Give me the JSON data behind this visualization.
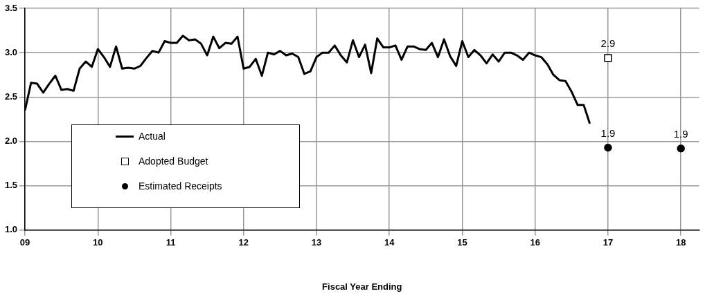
{
  "chart_data": {
    "type": "line",
    "xlabel": "Fiscal Year Ending",
    "xlim": [
      9,
      18.25
    ],
    "xticks": [
      {
        "value": 9,
        "label": "09"
      },
      10,
      11,
      12,
      13,
      14,
      15,
      16,
      17,
      18
    ],
    "ylim": [
      1,
      3.5
    ],
    "yticks": [
      {
        "value": 1,
        "label": "1.0"
      },
      1.5,
      {
        "value": 2,
        "label": "2.0"
      },
      2.5,
      {
        "value": 3,
        "label": "3.0"
      },
      3.5
    ],
    "grid": true,
    "legend": "left",
    "series": [
      {
        "name": "Actual",
        "color": "#000000",
        "marker": "none",
        "x": [
          9,
          9.0833,
          9.1667,
          9.25,
          9.3333,
          9.4167,
          9.5,
          9.5833,
          9.6667,
          9.75,
          9.8333,
          9.9167,
          10,
          10.0833,
          10.1667,
          10.25,
          10.3333,
          10.4167,
          10.5,
          10.5833,
          10.6667,
          10.75,
          10.8333,
          10.9167,
          11,
          11.0833,
          11.1667,
          11.25,
          11.3333,
          11.4167,
          11.5,
          11.5833,
          11.6667,
          11.75,
          11.8333,
          11.9167,
          12,
          12.0833,
          12.1667,
          12.25,
          12.3333,
          12.4167,
          12.5,
          12.5833,
          12.6667,
          12.75,
          12.8333,
          12.9167,
          13,
          13.0833,
          13.1667,
          13.25,
          13.3333,
          13.4167,
          13.5,
          13.5833,
          13.6667,
          13.75,
          13.8333,
          13.9167,
          14,
          14.0833,
          14.1667,
          14.25,
          14.3333,
          14.4167,
          14.5,
          14.5833,
          14.6667,
          14.75,
          14.8333,
          14.9167,
          15,
          15.0833,
          15.1667,
          15.25,
          15.3333,
          15.4167,
          15.5,
          15.5833,
          15.6667,
          15.75,
          15.8333,
          15.9167,
          16,
          16.0833,
          16.1667,
          16.25,
          16.3333,
          16.4167,
          16.5,
          16.5833,
          16.6667,
          16.75
        ],
        "values": [
          2.35,
          2.66,
          2.65,
          2.55,
          2.65,
          2.74,
          2.58,
          2.59,
          2.57,
          2.82,
          2.9,
          2.84,
          3.04,
          2.95,
          2.84,
          3.07,
          2.82,
          2.83,
          2.82,
          2.85,
          2.94,
          3.02,
          3.0,
          3.13,
          3.11,
          3.11,
          3.19,
          3.14,
          3.15,
          3.1,
          2.97,
          3.18,
          3.05,
          3.11,
          3.1,
          3.18,
          2.82,
          2.84,
          2.93,
          2.74,
          3.0,
          2.98,
          3.02,
          2.97,
          2.99,
          2.95,
          2.76,
          2.79,
          2.95,
          3.0,
          3.0,
          3.08,
          2.97,
          2.89,
          3.14,
          2.95,
          3.09,
          2.77,
          3.16,
          3.06,
          3.06,
          3.08,
          2.92,
          3.07,
          3.07,
          3.04,
          3.03,
          3.11,
          2.95,
          3.15,
          2.96,
          2.85,
          3.13,
          2.95,
          3.03,
          2.97,
          2.88,
          2.98,
          2.9,
          3.0,
          3.0,
          2.97,
          2.92,
          3.0,
          2.97,
          2.95,
          2.87,
          2.75,
          2.69,
          2.68,
          2.56,
          2.41,
          2.41,
          2.2
        ]
      },
      {
        "name": "Adopted Budget",
        "type": "scatter",
        "color": "#000000",
        "marker": "square",
        "x": [
          17
        ],
        "values": [
          2.94
        ],
        "value_labels": [
          "2.9"
        ]
      },
      {
        "name": "Estimated Receipts",
        "type": "scatter",
        "color": "#000000",
        "marker": "circle",
        "x": [
          17,
          18
        ],
        "values": [
          1.93,
          1.92
        ],
        "value_labels": [
          "1.9",
          "1.9"
        ]
      }
    ]
  }
}
